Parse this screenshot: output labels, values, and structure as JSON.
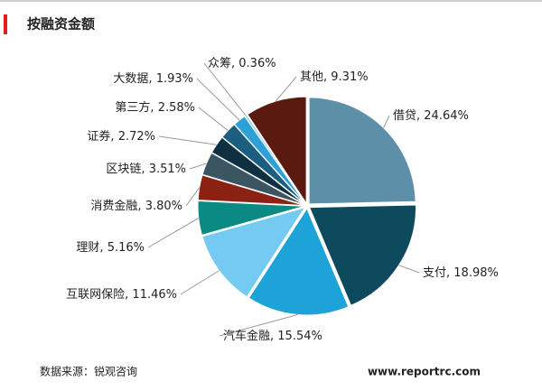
{
  "chart_data": {
    "type": "pie",
    "title": "按融资金额",
    "categories": [
      "借贷",
      "支付",
      "汽车金融",
      "互联网保险",
      "理财",
      "消费金融",
      "区块链",
      "证券",
      "第三方",
      "大数据",
      "众筹",
      "其他"
    ],
    "values": [
      24.64,
      18.98,
      15.54,
      11.46,
      5.16,
      3.8,
      3.51,
      2.72,
      2.58,
      1.93,
      0.36,
      9.31
    ],
    "value_labels": [
      "24.64%",
      "18.98%",
      "15.54%",
      "11.46%",
      "5.16%",
      "3.80%",
      "3.51%",
      "2.72%",
      "2.58%",
      "1.93%",
      "0.36%",
      "9.31%"
    ],
    "label_separator": ", ",
    "colors": [
      "#5d8fa8",
      "#0e4a5e",
      "#1ea3d9",
      "#74caf0",
      "#0b8a84",
      "#8b2214",
      "#3b5563",
      "#0f3040",
      "#1c5e80",
      "#2ea0d8",
      "#9ad2e6",
      "#5a1a10"
    ],
    "source": "数据来源：锐观咨询",
    "website": "www.reportrc.com"
  }
}
